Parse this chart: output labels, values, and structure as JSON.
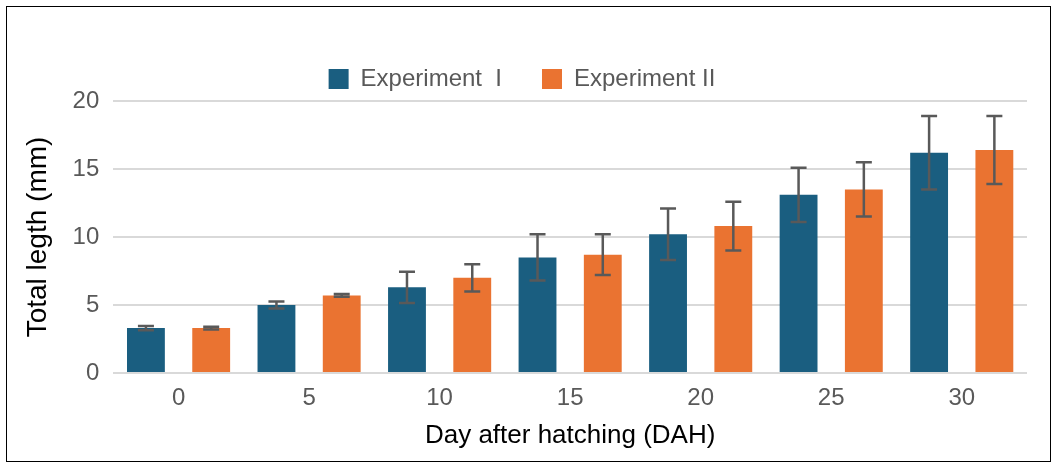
{
  "chart_data": {
    "type": "bar",
    "xlabel": "Day after hatching (DAH)",
    "ylabel": "Total legth (mm)",
    "categories": [
      "0",
      "5",
      "10",
      "15",
      "20",
      "25",
      "30"
    ],
    "series": [
      {
        "name": "Experiment  I",
        "color": "#1a5e80",
        "values": [
          3.3,
          5.0,
          6.3,
          8.5,
          10.2,
          13.1,
          16.2
        ],
        "errors": [
          0.15,
          0.25,
          1.15,
          1.7,
          1.9,
          2.0,
          2.7
        ]
      },
      {
        "name": "Experiment II",
        "color": "#ea7331",
        "values": [
          3.3,
          5.7,
          7.0,
          8.7,
          10.8,
          13.5,
          16.4
        ],
        "errors": [
          0.1,
          0.1,
          1.0,
          1.5,
          1.8,
          2.0,
          2.5
        ]
      }
    ],
    "ylim": [
      0,
      20
    ],
    "yticks": [
      0,
      5,
      10,
      15,
      20
    ],
    "grid": "y",
    "legend": "top"
  }
}
